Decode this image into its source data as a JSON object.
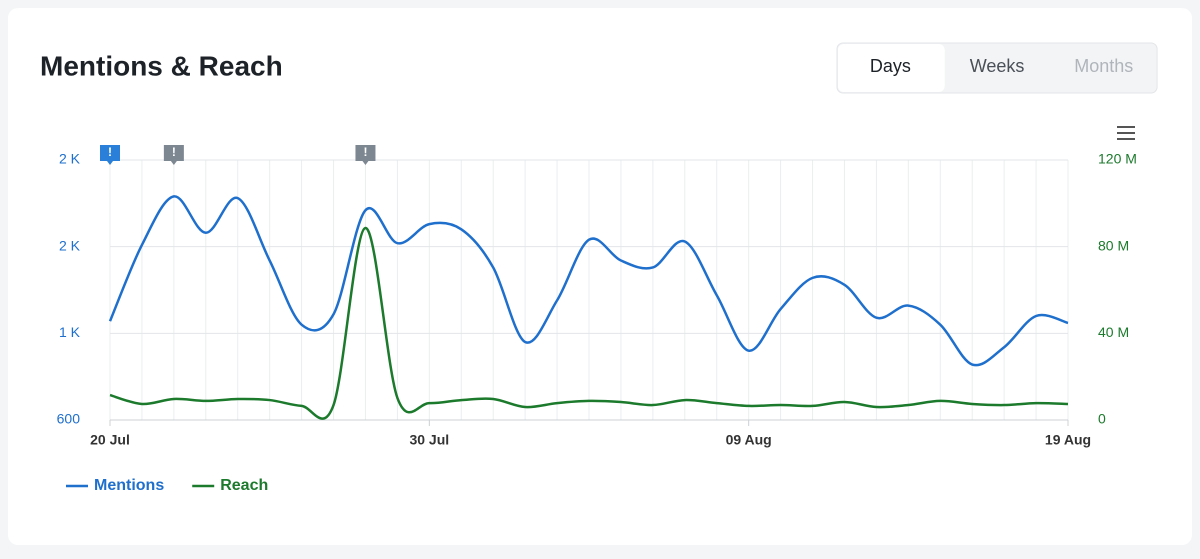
{
  "chart_data": {
    "type": "line",
    "title": "Mentions & Reach",
    "ranges": [
      "Days",
      "Weeks",
      "Months"
    ],
    "selected_range": "Days",
    "disabled_ranges": [
      "Months"
    ],
    "categories": [
      "20 Jul",
      null,
      null,
      null,
      null,
      null,
      null,
      null,
      null,
      null,
      "30 Jul",
      null,
      null,
      null,
      null,
      null,
      null,
      null,
      null,
      null,
      "09 Aug",
      null,
      null,
      null,
      null,
      null,
      null,
      null,
      null,
      null,
      "19 Aug"
    ],
    "series": [
      {
        "name": "Mentions",
        "color": "#1f6fcd",
        "axis": "y",
        "values": [
          1170,
          1610,
          1890,
          1680,
          1880,
          1520,
          1150,
          1210,
          1810,
          1620,
          1730,
          1700,
          1480,
          1050,
          1290,
          1640,
          1520,
          1480,
          1630,
          1320,
          1000,
          1240,
          1420,
          1380,
          1190,
          1260,
          1150,
          920,
          1020,
          1200,
          1160
        ]
      },
      {
        "name": "Reach",
        "color": "#1c7a2c",
        "axis": "y2",
        "values": [
          11500000,
          7400000,
          9700000,
          8800000,
          9700000,
          9200000,
          6500000,
          6900000,
          88600000,
          10200000,
          7800000,
          9200000,
          9700000,
          6000000,
          7800000,
          8800000,
          8300000,
          6900000,
          9200000,
          7800000,
          6500000,
          6900000,
          6500000,
          8300000,
          6000000,
          6900000,
          8800000,
          7400000,
          6900000,
          7800000,
          7400000
        ]
      }
    ],
    "ylim": [
      600,
      2100
    ],
    "yticks": [
      600,
      {
        "value": 1100,
        "label": "1 K"
      },
      {
        "value": 1600,
        "label": "2 K"
      },
      {
        "value": 2100,
        "label": "2 K"
      }
    ],
    "y2lim": [
      0,
      120000000
    ],
    "y2ticks": [
      0,
      {
        "value": 40000000,
        "label": "40 M"
      },
      {
        "value": 80000000,
        "label": "80 M"
      },
      {
        "value": 120000000,
        "label": "120 M"
      }
    ],
    "annotations": [
      {
        "at": 0,
        "label": "!",
        "color": "#2a7fd9"
      },
      {
        "at": 2,
        "label": "!",
        "color": "#7d8791"
      },
      {
        "at": 8,
        "label": "!",
        "color": "#7d8791"
      }
    ],
    "grid": true,
    "legend": "bottom-left"
  }
}
